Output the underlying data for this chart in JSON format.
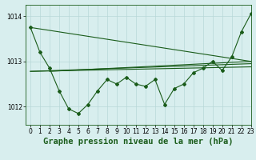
{
  "background_color": "#d8eeee",
  "grid_color": "#b8d8d8",
  "line_color": "#1a5c1a",
  "title": "Graphe pression niveau de la mer (hPa)",
  "xlim": [
    -0.5,
    23
  ],
  "ylim": [
    1011.6,
    1014.25
  ],
  "yticks": [
    1012,
    1013,
    1014
  ],
  "xticks": [
    0,
    1,
    2,
    3,
    4,
    5,
    6,
    7,
    8,
    9,
    10,
    11,
    12,
    13,
    14,
    15,
    16,
    17,
    18,
    19,
    20,
    21,
    22,
    23
  ],
  "series1_x": [
    0,
    1,
    2,
    3,
    4,
    5,
    6,
    7,
    8,
    9,
    10,
    11,
    12,
    13,
    14,
    15,
    16,
    17,
    18,
    19,
    20,
    21,
    22,
    23
  ],
  "series1_y": [
    1013.75,
    1013.2,
    1012.85,
    1012.35,
    1011.95,
    1011.85,
    1012.05,
    1012.35,
    1012.6,
    1012.5,
    1012.65,
    1012.5,
    1012.45,
    1012.6,
    1012.05,
    1012.4,
    1012.5,
    1012.75,
    1012.85,
    1013.0,
    1012.8,
    1013.1,
    1013.65,
    1014.05
  ],
  "line2_x": [
    0,
    23
  ],
  "line2_y": [
    1013.75,
    1013.0
  ],
  "line3_x": [
    0,
    23
  ],
  "line3_y": [
    1012.78,
    1012.88
  ],
  "line4_x": [
    0,
    23
  ],
  "line4_y": [
    1012.78,
    1012.95
  ],
  "line5_x": [
    2,
    23
  ],
  "line5_y": [
    1012.78,
    1013.0
  ],
  "title_fontsize": 7.5,
  "tick_fontsize": 5.5
}
